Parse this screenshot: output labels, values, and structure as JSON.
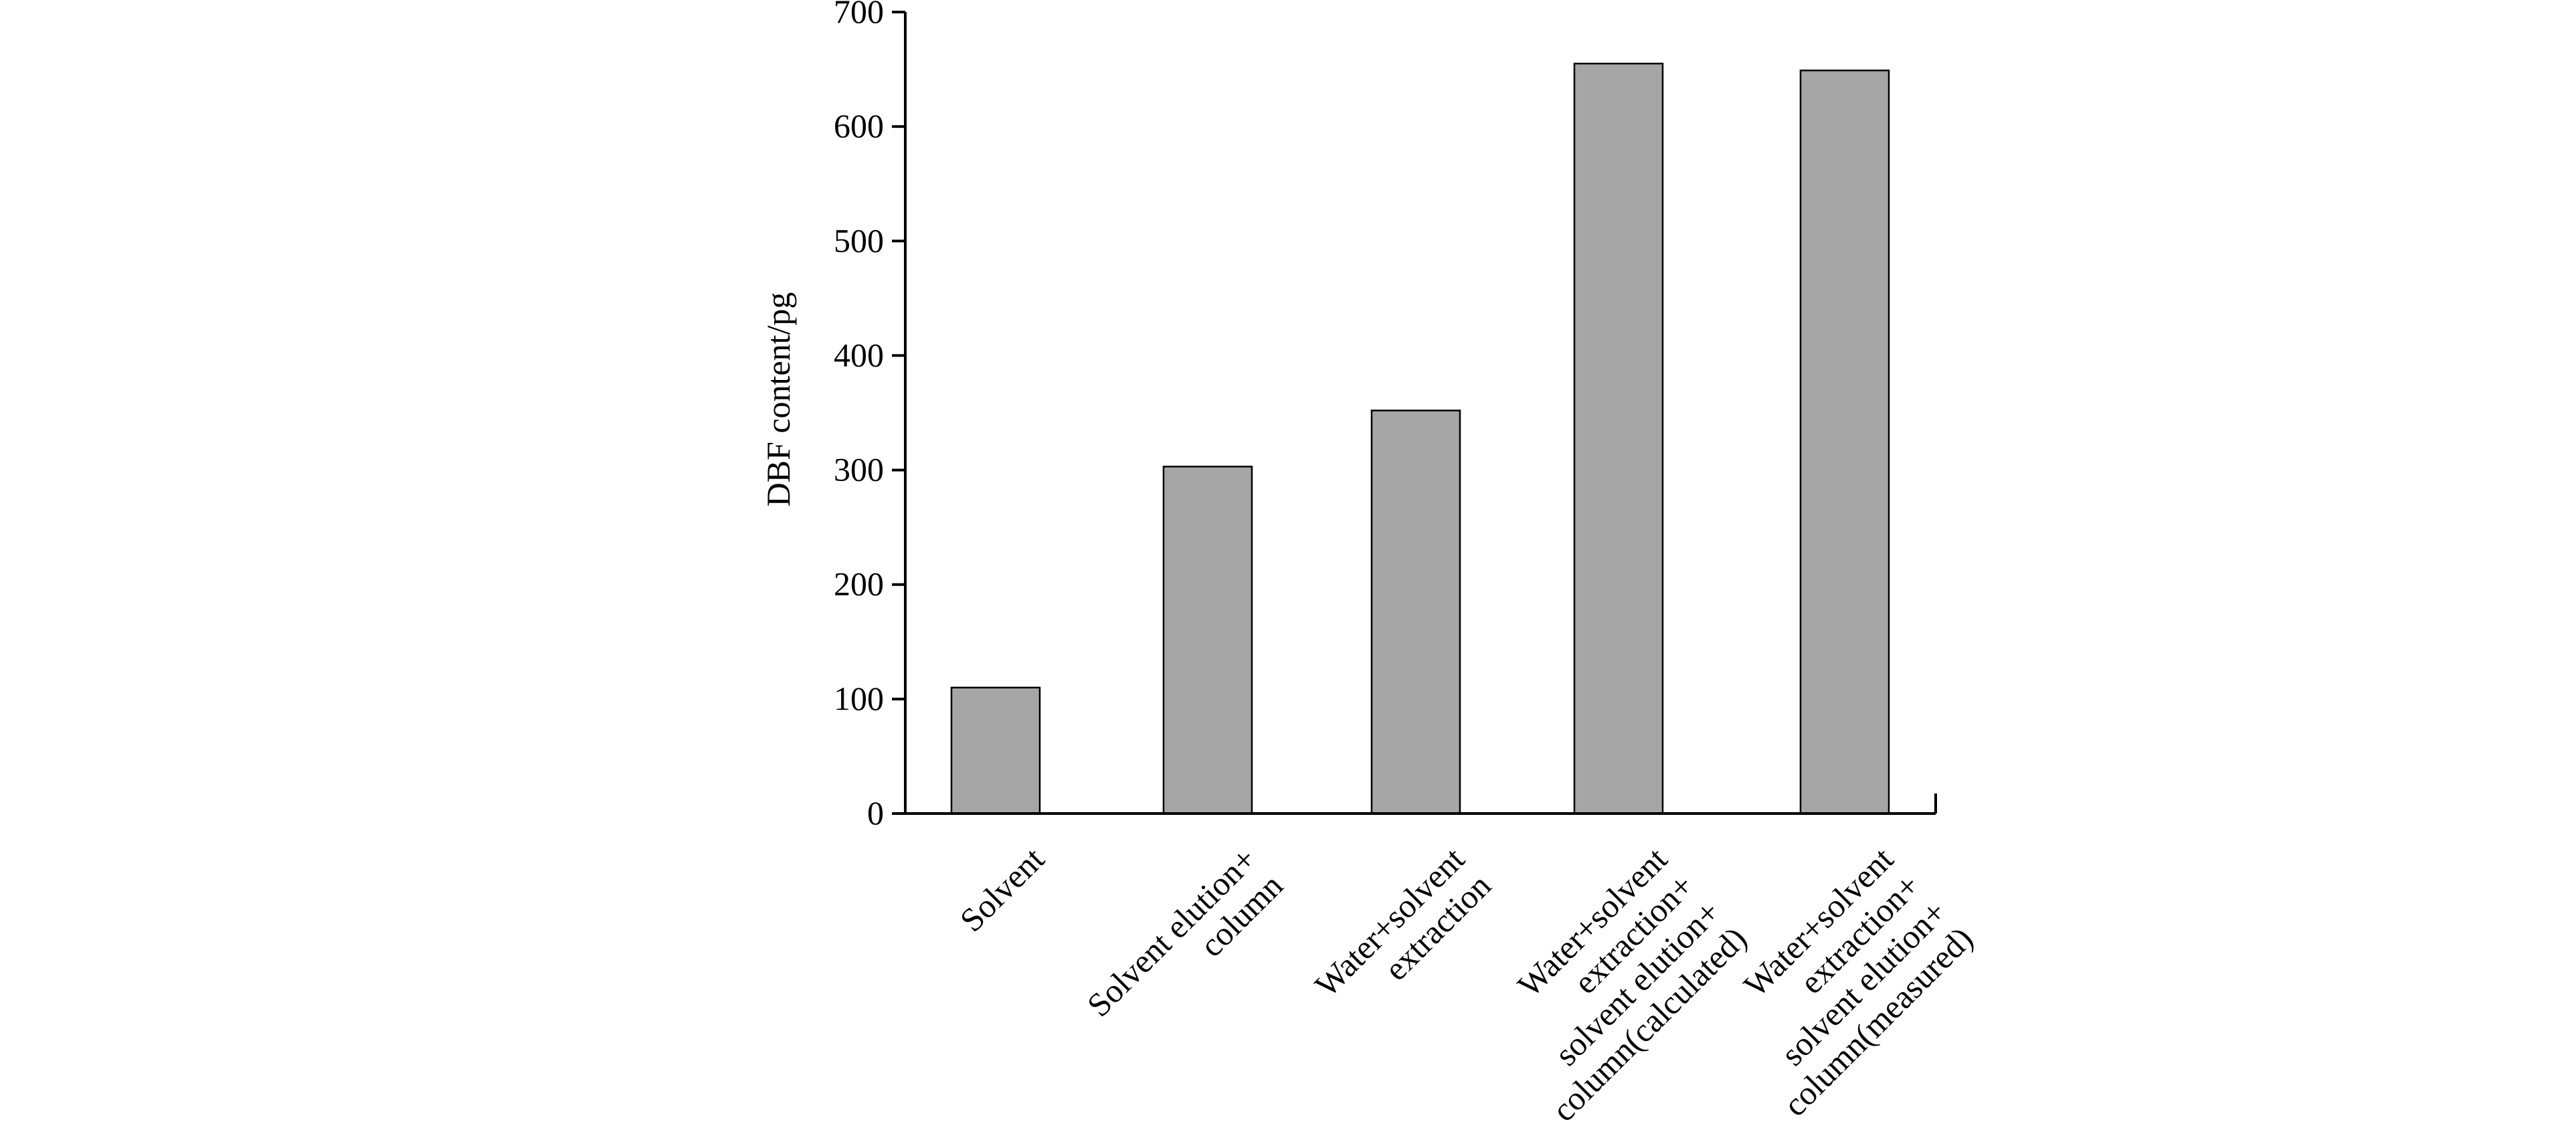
{
  "colors": {
    "bar_fill": "#a6a6a6",
    "axis": "#000000",
    "background": "#ffffff"
  },
  "chart_data": {
    "type": "bar",
    "title": "",
    "xlabel": "",
    "ylabel": "DBF content/pg",
    "ylim": [
      0,
      700
    ],
    "yticks": [
      0,
      100,
      200,
      300,
      400,
      500,
      600,
      700
    ],
    "grid": false,
    "legend": "none",
    "categories": [
      "Solvent",
      "Solvent elution+\ncolumn",
      "Water+solvent\nextraction",
      "Water+solvent\nextraction+\nsolvent elution+\ncolumn(calculated)",
      "Water+solvent\nextraction+\nsolvent elution+\ncolumn(measured)"
    ],
    "values": [
      110,
      303,
      352,
      655,
      649
    ]
  }
}
